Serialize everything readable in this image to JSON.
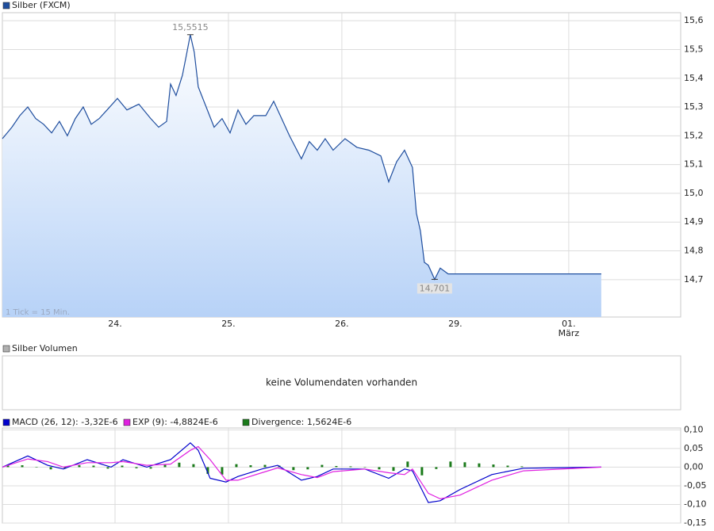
{
  "chart_data": [
    {
      "type": "area",
      "legend": "Silber (FXCM)",
      "color": "#1f4e9e",
      "note": "1 Tick = 15 Min.",
      "x": [
        0,
        0.084,
        0.154,
        0.224,
        0.294,
        0.364,
        0.434,
        0.503,
        0.573,
        0.643,
        0.713,
        0.783,
        0.853,
        0.923,
        1.014,
        1.098,
        1.203,
        1.308,
        1.378,
        1.448,
        1.483,
        1.531,
        1.587,
        1.622,
        1.657,
        1.692,
        1.727,
        1.797,
        1.867,
        1.937,
        2.007,
        2.077,
        2.147,
        2.217,
        2.322,
        2.392,
        2.462,
        2.531,
        2.636,
        2.706,
        2.776,
        2.846,
        2.916,
        3.021,
        3.126,
        3.231,
        3.336,
        3.406,
        3.476,
        3.545,
        3.615,
        3.65,
        3.685,
        3.72,
        3.755,
        3.811,
        3.86,
        3.93,
        5.28
      ],
      "values": [
        15.19,
        15.23,
        15.27,
        15.3,
        15.26,
        15.24,
        15.21,
        15.25,
        15.2,
        15.26,
        15.3,
        15.24,
        15.26,
        15.29,
        15.33,
        15.29,
        15.31,
        15.26,
        15.23,
        15.25,
        15.38,
        15.34,
        15.41,
        15.48,
        15.5515,
        15.49,
        15.37,
        15.3,
        15.23,
        15.26,
        15.21,
        15.29,
        15.24,
        15.27,
        15.27,
        15.32,
        15.26,
        15.2,
        15.12,
        15.18,
        15.15,
        15.19,
        15.15,
        15.19,
        15.16,
        15.15,
        15.13,
        15.04,
        15.11,
        15.15,
        15.09,
        14.93,
        14.87,
        14.76,
        14.75,
        14.701,
        14.74,
        14.72,
        14.72
      ],
      "annotations": [
        {
          "text": "15,5515",
          "x": 1.657,
          "y": 15.5515
        },
        {
          "text": "14,701",
          "x": 3.811,
          "y": 14.701
        }
      ],
      "xlim": [
        0,
        5.98
      ],
      "xticks": [
        {
          "value": 0.993,
          "label": "24."
        },
        {
          "value": 1.993,
          "label": "25."
        },
        {
          "value": 2.993,
          "label": "26."
        },
        {
          "value": 3.993,
          "label": "29."
        },
        {
          "value": 4.993,
          "label": "01."
        }
      ],
      "month_label": "März",
      "ylim": [
        14.57,
        15.628
      ],
      "yticks": [
        {
          "value": 15.6,
          "label": "15,6"
        },
        {
          "value": 15.5,
          "label": "15,5"
        },
        {
          "value": 15.4,
          "label": "15,4"
        },
        {
          "value": 15.3,
          "label": "15,3"
        },
        {
          "value": 15.2,
          "label": "15,2"
        },
        {
          "value": 15.1,
          "label": "15,1"
        },
        {
          "value": 15.0,
          "label": "15,0"
        },
        {
          "value": 14.9,
          "label": "14,9"
        },
        {
          "value": 14.8,
          "label": "14,8"
        },
        {
          "value": 14.7,
          "label": "14,7"
        }
      ],
      "grid": true
    },
    {
      "type": "empty",
      "legend": "Silber Volumen",
      "color": "#b0b0b0",
      "message": "keine Volumendaten vorhanden"
    },
    {
      "type": "line",
      "xlim": [
        0,
        5.98
      ],
      "ylim": [
        -0.15,
        0.105
      ],
      "yticks": [
        {
          "value": 0.1,
          "label": "0,10"
        },
        {
          "value": 0.05,
          "label": "0,05"
        },
        {
          "value": 0,
          "label": "0,00"
        },
        {
          "value": -0.05,
          "label": "-0,05"
        },
        {
          "value": -0.1,
          "label": "-0,10"
        },
        {
          "value": -0.15,
          "label": "-0,15"
        }
      ],
      "grid": true,
      "x": [
        0,
        0.224,
        0.399,
        0.538,
        0.748,
        0.958,
        1.063,
        1.273,
        1.483,
        1.657,
        1.727,
        1.832,
        1.972,
        2.077,
        2.287,
        2.427,
        2.636,
        2.776,
        2.916,
        3.196,
        3.406,
        3.545,
        3.615,
        3.755,
        3.86,
        4.035,
        4.315,
        4.594,
        5.28
      ],
      "series": [
        {
          "name": "MACD (26, 12): -3,32E-6",
          "color": "#0000cc",
          "kind": "line",
          "values": [
            0,
            0.03,
            0.005,
            -0.005,
            0.02,
            0,
            0.02,
            0,
            0.02,
            0.065,
            0.045,
            -0.03,
            -0.04,
            -0.025,
            -0.005,
            0.005,
            -0.035,
            -0.025,
            -0.005,
            -0.005,
            -0.03,
            -0.005,
            -0.01,
            -0.095,
            -0.09,
            -0.06,
            -0.02,
            -0.003,
            0
          ]
        },
        {
          "name": "EXP (9): -4,8824E-6",
          "color": "#e020e0",
          "kind": "line",
          "values": [
            0,
            0.022,
            0.015,
            0,
            0.012,
            0.012,
            0.015,
            0.005,
            0.008,
            0.045,
            0.055,
            0.02,
            -0.035,
            -0.035,
            -0.015,
            -0.002,
            -0.02,
            -0.028,
            -0.012,
            -0.005,
            -0.015,
            -0.02,
            -0.005,
            -0.07,
            -0.085,
            -0.075,
            -0.035,
            -0.01,
            0
          ]
        },
        {
          "name": "Divergence: 1,5624E-6",
          "color": "#1a7a1a",
          "kind": "bar",
          "x": [
            0.049,
            0.175,
            0.301,
            0.427,
            0.552,
            0.678,
            0.804,
            0.93,
            1.056,
            1.182,
            1.308,
            1.434,
            1.559,
            1.685,
            1.811,
            1.937,
            2.063,
            2.189,
            2.315,
            2.441,
            2.566,
            2.692,
            2.818,
            2.944,
            3.07,
            3.196,
            3.322,
            3.448,
            3.573,
            3.699,
            3.825,
            3.951,
            4.077,
            4.203,
            4.329,
            4.455,
            4.58
          ],
          "values": [
            0.004,
            0.005,
            0,
            -0.006,
            -0.004,
            0.005,
            0.004,
            -0.004,
            0.004,
            -0.003,
            -0.004,
            0.006,
            0.012,
            0.008,
            -0.018,
            -0.02,
            0.008,
            0.005,
            0.006,
            0.004,
            -0.008,
            -0.006,
            0.006,
            0.003,
            0.002,
            0,
            -0.006,
            -0.01,
            0.015,
            -0.022,
            -0.005,
            0.015,
            0.013,
            0.01,
            0.007,
            0.004,
            0.002
          ]
        }
      ]
    }
  ]
}
